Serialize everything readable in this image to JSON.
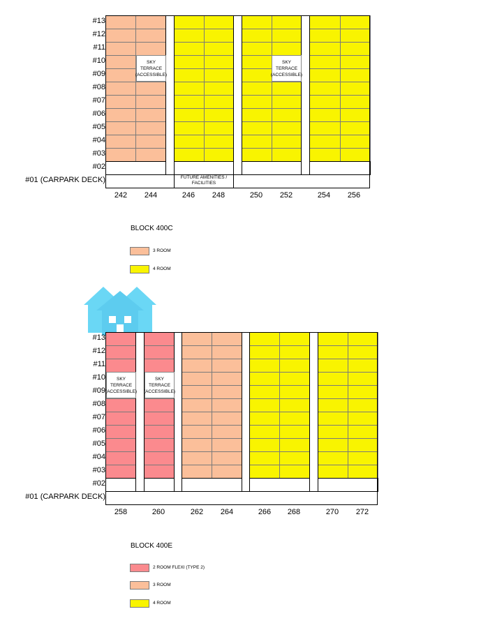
{
  "block_c": {
    "floor_labels": [
      "#13",
      "#12",
      "#11",
      "#10",
      "#09",
      "#08",
      "#07",
      "#06",
      "#05",
      "#04",
      "#03",
      "#02",
      "#01 (CARPARK DECK)"
    ],
    "units": [
      "242",
      "244",
      "246",
      "248",
      "250",
      "252",
      "254",
      "256"
    ],
    "sky_terrace": [
      "SKY",
      "TERRACE",
      "(ACCESSIBLE)"
    ],
    "amenities": [
      "FUTURE AMENITIES /",
      "FACILITIES"
    ],
    "title": "BLOCK 400C",
    "legend": [
      {
        "label": "3 ROOM",
        "color": "#fbbf9a"
      },
      {
        "label": "4 ROOM",
        "color": "#f9f400"
      }
    ]
  },
  "block_e": {
    "floor_labels": [
      "#13",
      "#12",
      "#11",
      "#10",
      "#09",
      "#08",
      "#07",
      "#06",
      "#05",
      "#04",
      "#03",
      "#02",
      "#01 (CARPARK DECK)"
    ],
    "units": [
      "258",
      "260",
      "262",
      "264",
      "266",
      "268",
      "270",
      "272"
    ],
    "sky_terrace": [
      "SKY",
      "TERRACE",
      "(ACCESSIBLE)"
    ],
    "title": "BLOCK 400E",
    "legend": [
      {
        "label": "2 ROOM FLEXI (TYPE 2)",
        "color": "#fb8a8e"
      },
      {
        "label": "3 ROOM",
        "color": "#fbbf9a"
      },
      {
        "label": "4 ROOM",
        "color": "#f9f400"
      }
    ]
  },
  "colors": {
    "room2": "#fb8a8e",
    "room3": "#fbbf9a",
    "room4": "#f9f400",
    "watermark": "#5ad3f5"
  },
  "watermark_icon": "house-icon"
}
